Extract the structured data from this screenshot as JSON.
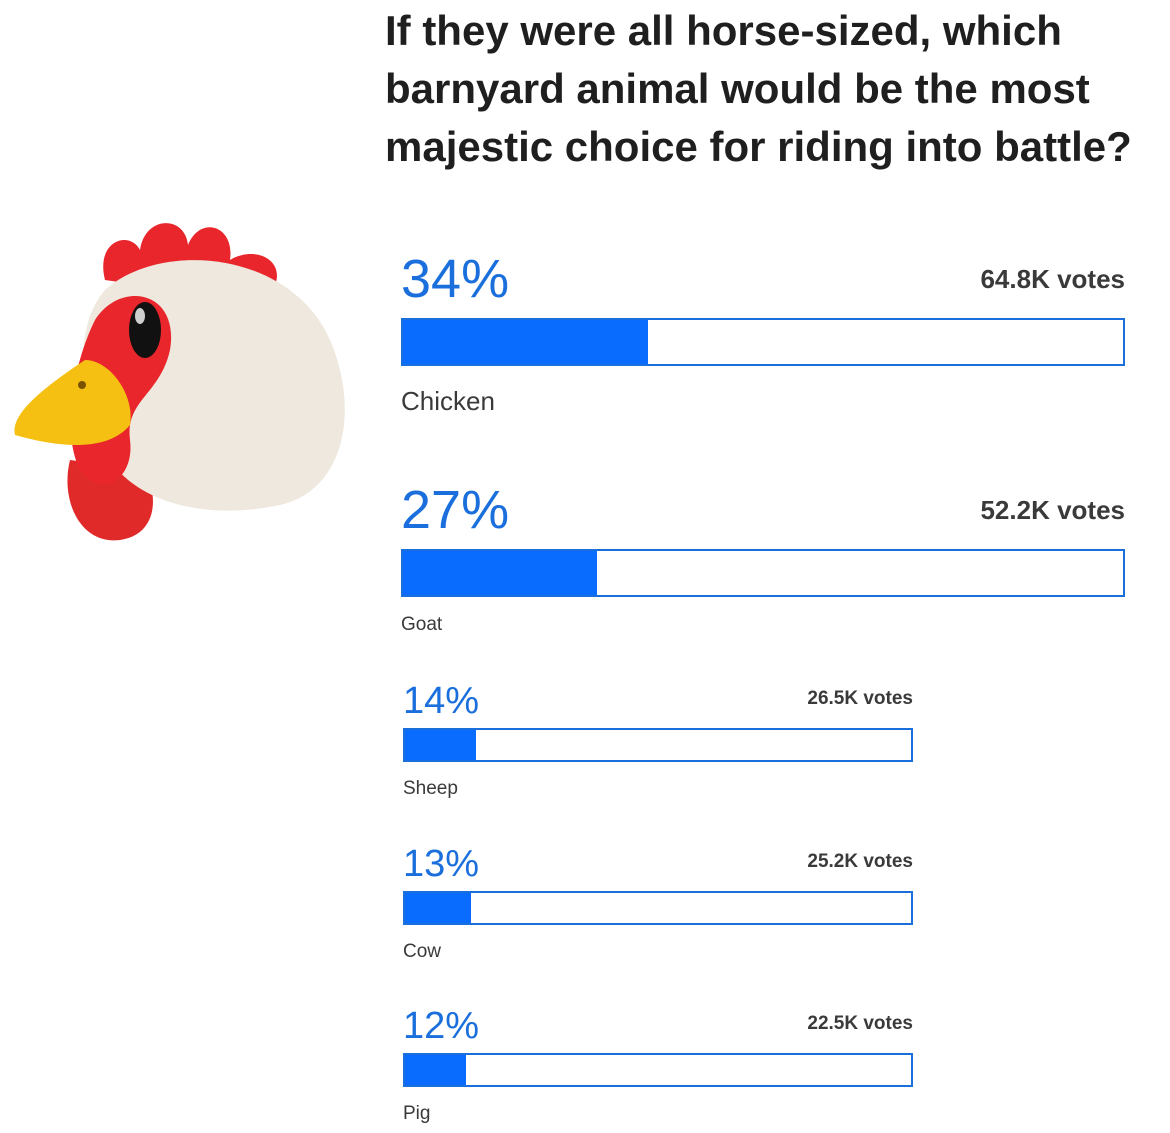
{
  "question": "If they were all horse-sized, which barnyard animal would be the most majestic choice for riding into battle?",
  "illustration": "chicken-emoji",
  "colors": {
    "accent": "#0a6cff",
    "percent_text": "#1a6fdc",
    "text": "#2b2b2b"
  },
  "chart_data": {
    "type": "bar",
    "orientation": "horizontal",
    "title": "If they were all horse-sized, which barnyard animal would be the most majestic choice for riding into battle?",
    "categories": [
      "Chicken",
      "Goat",
      "Sheep",
      "Cow",
      "Pig"
    ],
    "values": [
      34,
      27,
      14,
      13,
      12
    ],
    "xlim": [
      0,
      100
    ],
    "grid": false
  },
  "options": [
    {
      "label": "Chicken",
      "percent": 34,
      "percent_text": "34%",
      "votes": "64.8K votes"
    },
    {
      "label": "Goat",
      "percent": 27,
      "percent_text": "27%",
      "votes": "52.2K votes"
    },
    {
      "label": "Sheep",
      "percent": 14,
      "percent_text": "14%",
      "votes": "26.5K votes"
    },
    {
      "label": "Cow",
      "percent": 13,
      "percent_text": "13%",
      "votes": "25.2K votes"
    },
    {
      "label": "Pig",
      "percent": 12,
      "percent_text": "12%",
      "votes": "22.5K votes"
    }
  ]
}
